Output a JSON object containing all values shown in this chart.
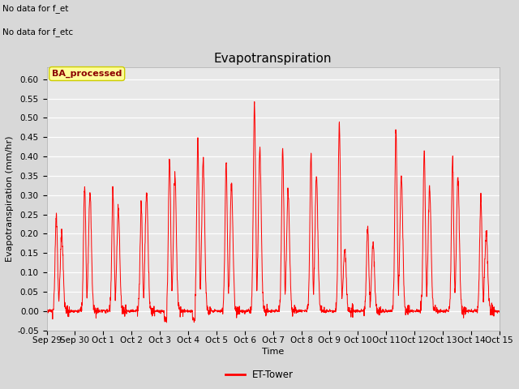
{
  "title": "Evapotranspiration",
  "ylabel": "Evapotranspiration (mm/hr)",
  "xlabel": "Time",
  "line_color": "#FF0000",
  "line_label": "ET-Tower",
  "ylim": [
    -0.05,
    0.63
  ],
  "yticks": [
    -0.05,
    0.0,
    0.05,
    0.1,
    0.15,
    0.2,
    0.25,
    0.3,
    0.35,
    0.4,
    0.45,
    0.5,
    0.55,
    0.6
  ],
  "fig_bg_color": "#D8D8D8",
  "plot_bg_color": "#E8E8E8",
  "annotation_text1": "No data for f_et",
  "annotation_text2": "No data for f_etc",
  "box_label": "BA_processed",
  "box_bg_color": "#FFFF99",
  "box_text_color": "#8B0000",
  "n_days": 16,
  "daily_peaks": [
    0.25,
    0.32,
    0.31,
    0.28,
    0.4,
    0.44,
    0.38,
    0.54,
    0.42,
    0.41,
    0.49,
    0.22,
    0.47,
    0.41,
    0.39,
    0.3
  ],
  "secondary_peaks": [
    0.2,
    0.31,
    0.26,
    0.31,
    0.35,
    0.39,
    0.33,
    0.42,
    0.31,
    0.35,
    0.16,
    0.17,
    0.35,
    0.32,
    0.35,
    0.2
  ],
  "title_fontsize": 11,
  "tick_fontsize": 7.5,
  "ylabel_fontsize": 8,
  "xlabel_fontsize": 8,
  "linewidth": 0.7
}
